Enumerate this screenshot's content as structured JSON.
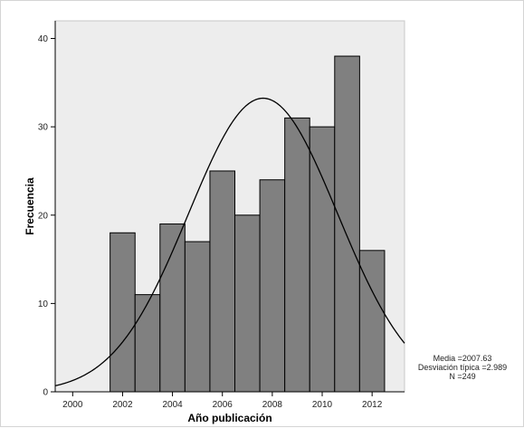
{
  "chart_data": {
    "type": "bar",
    "subtype": "histogram",
    "xlabel": "Año publicación",
    "ylabel": "Frecuencia",
    "xlim": [
      1999.3,
      2013.3
    ],
    "ylim": [
      0,
      42
    ],
    "x_ticks": [
      "2000",
      "2002",
      "2004",
      "2006",
      "2008",
      "2010",
      "2012"
    ],
    "x_tick_values": [
      2000,
      2002,
      2004,
      2006,
      2008,
      2010,
      2012
    ],
    "y_ticks": [
      "0",
      "10",
      "20",
      "30",
      "40"
    ],
    "y_tick_values": [
      0,
      10,
      20,
      30,
      40
    ],
    "bin_width": 1,
    "bins": [
      {
        "start": 2001.5,
        "end": 2002.5,
        "count": 18
      },
      {
        "start": 2002.5,
        "end": 2003.5,
        "count": 11
      },
      {
        "start": 2003.5,
        "end": 2004.5,
        "count": 19
      },
      {
        "start": 2004.5,
        "end": 2005.5,
        "count": 17
      },
      {
        "start": 2005.5,
        "end": 2006.5,
        "count": 25
      },
      {
        "start": 2006.5,
        "end": 2007.5,
        "count": 20
      },
      {
        "start": 2007.5,
        "end": 2008.5,
        "count": 24
      },
      {
        "start": 2008.5,
        "end": 2009.5,
        "count": 31
      },
      {
        "start": 2009.5,
        "end": 2010.5,
        "count": 30
      },
      {
        "start": 2010.5,
        "end": 2011.5,
        "count": 38
      },
      {
        "start": 2011.5,
        "end": 2012.5,
        "count": 16
      }
    ],
    "normal_curve": {
      "mean": 2007.63,
      "sd": 2.989,
      "n": 249
    },
    "stats_text": [
      "Media =2007.63",
      "Desviación típica =2.989",
      "N =249"
    ],
    "grid": false,
    "colors": {
      "plot_background": "#ededed",
      "bar_fill": "#808080",
      "bar_stroke": "#000000",
      "curve": "#000000"
    }
  }
}
